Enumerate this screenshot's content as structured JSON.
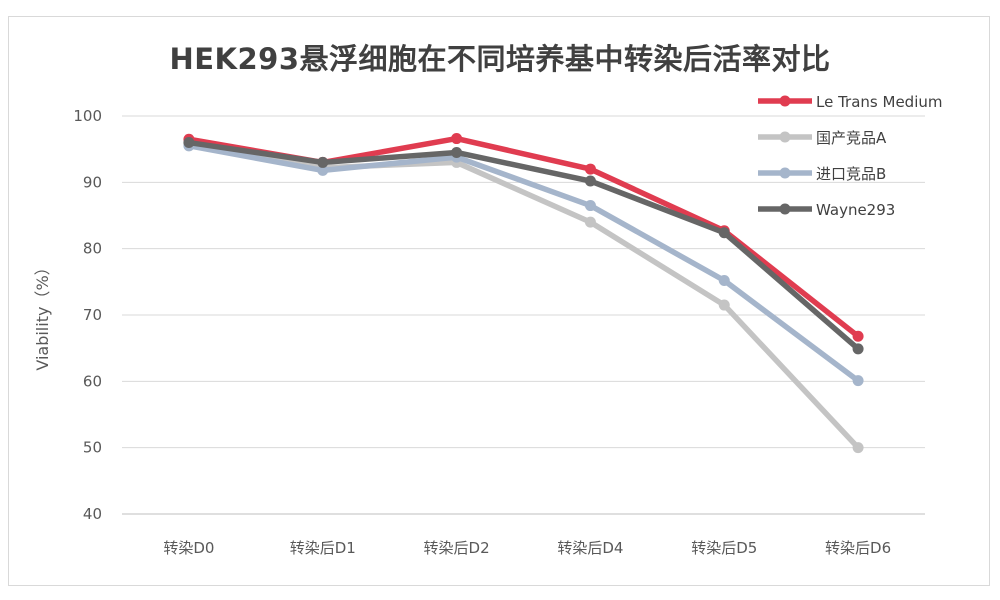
{
  "chart_data": {
    "type": "line",
    "title": "HEK293悬浮细胞在不同培养基中转染后活率对比",
    "xlabel": "",
    "ylabel": "Viability（%）",
    "categories": [
      "转染D0",
      "转染后D1",
      "转染后D2",
      "转染后D4",
      "转染后D5",
      "转染后D6"
    ],
    "ylim": [
      40,
      100
    ],
    "yticks": [
      40,
      50,
      60,
      70,
      80,
      90,
      100
    ],
    "grid": true,
    "legend_position": "top-right",
    "series": [
      {
        "name": "Le Trans Medium",
        "color": "#e03c50",
        "values": [
          96.5,
          93.0,
          96.6,
          92.0,
          82.7,
          66.8
        ]
      },
      {
        "name": "国产竞品A",
        "color": "#c4c4c4",
        "values": [
          95.8,
          92.2,
          93.0,
          84.0,
          71.5,
          50.0
        ]
      },
      {
        "name": "进口竞品B",
        "color": "#a5b5cb",
        "values": [
          95.5,
          91.8,
          93.8,
          86.5,
          75.2,
          60.1
        ]
      },
      {
        "name": "Wayne293",
        "color": "#666666",
        "values": [
          96.0,
          93.0,
          94.5,
          90.2,
          82.4,
          64.9
        ]
      }
    ]
  }
}
